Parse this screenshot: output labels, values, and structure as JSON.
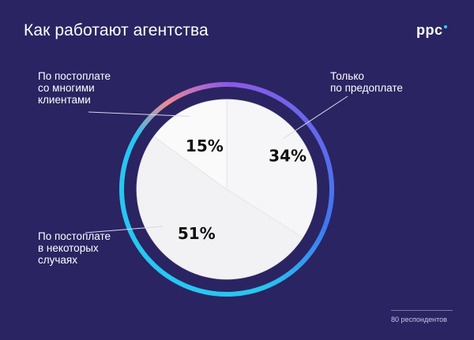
{
  "header": {
    "title": "Как работают агентства",
    "logo_text": "ppc"
  },
  "callouts": {
    "top_left": "По постоплате\nсо многими\nклиентами",
    "top_right": "Только\nпо предоплате",
    "bottom_left": "По постоплате\nв некоторых\nслучаях"
  },
  "footnote": "80 респондентов",
  "colors": {
    "background": "#2a2462",
    "pie_fill": "#f4f4f6",
    "ring_cyan": "#29c6f0",
    "ring_blue": "#3d78f0",
    "ring_purple": "#8d58e8",
    "ring_pink": "#ef8a95",
    "logo_dot": "#2ad1f0"
  },
  "chart_data": {
    "type": "pie",
    "title": "Как работают агентства",
    "slices": [
      {
        "name": "Только по предоплате",
        "value": 34,
        "label": "34%"
      },
      {
        "name": "По постоплате в некоторых случаях",
        "value": 51,
        "label": "51%"
      },
      {
        "name": "По постоплате со многими клиентами",
        "value": 15,
        "label": "15%"
      }
    ],
    "unit": "%",
    "respondents": 80
  }
}
